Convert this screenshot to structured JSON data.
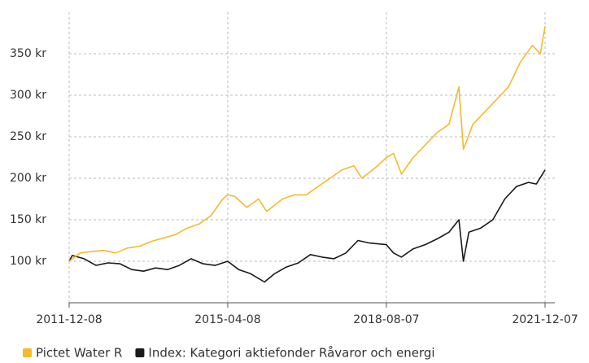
{
  "chart_data": {
    "type": "line",
    "xlim": [
      "2011-12-08",
      "2021-12-07"
    ],
    "xticks": [
      "2011-12-08",
      "2015-04-08",
      "2018-08-07",
      "2021-12-07"
    ],
    "ylim": [
      50,
      400
    ],
    "yticks": [
      {
        "value": 100,
        "label": "100 kr"
      },
      {
        "value": 150,
        "label": "150 kr"
      },
      {
        "value": 200,
        "label": "200 kr"
      },
      {
        "value": 250,
        "label": "250 kr"
      },
      {
        "value": 300,
        "label": "300 kr"
      },
      {
        "value": 350,
        "label": "350 kr"
      }
    ],
    "grid": true,
    "legend": "bottom",
    "series": [
      {
        "name": "Pictet Water R",
        "color": "#f6b92b",
        "x": [
          "2011-12-08",
          "2012-03-01",
          "2012-06-01",
          "2012-09-01",
          "2012-12-01",
          "2013-03-01",
          "2013-06-01",
          "2013-09-01",
          "2013-12-01",
          "2014-03-01",
          "2014-06-01",
          "2014-09-01",
          "2014-12-01",
          "2015-03-01",
          "2015-04-08",
          "2015-06-01",
          "2015-09-01",
          "2015-12-01",
          "2016-02-01",
          "2016-06-01",
          "2016-09-01",
          "2016-12-01",
          "2017-03-01",
          "2017-06-01",
          "2017-09-01",
          "2017-12-01",
          "2018-02-01",
          "2018-06-01",
          "2018-08-07",
          "2018-10-01",
          "2018-12-01",
          "2019-03-01",
          "2019-06-01",
          "2019-09-01",
          "2019-12-01",
          "2020-02-15",
          "2020-03-20",
          "2020-06-01",
          "2020-09-01",
          "2020-12-01",
          "2021-03-01",
          "2021-06-01",
          "2021-09-01",
          "2021-11-01",
          "2021-12-07"
        ],
        "values": [
          100,
          110,
          112,
          113,
          110,
          116,
          118,
          124,
          128,
          132,
          140,
          145,
          155,
          175,
          180,
          178,
          165,
          175,
          160,
          175,
          180,
          180,
          190,
          200,
          210,
          215,
          200,
          215,
          225,
          230,
          205,
          225,
          240,
          255,
          265,
          310,
          235,
          265,
          280,
          295,
          310,
          340,
          360,
          350,
          383
        ]
      },
      {
        "name": "Index: Kategori aktiefonder Råvaror och energi",
        "color": "#1a1a1a",
        "x": [
          "2011-12-08",
          "2012-01-01",
          "2012-04-01",
          "2012-07-01",
          "2012-10-01",
          "2013-01-01",
          "2013-04-01",
          "2013-07-01",
          "2013-10-01",
          "2014-01-01",
          "2014-04-01",
          "2014-07-01",
          "2014-10-01",
          "2015-01-01",
          "2015-04-08",
          "2015-07-01",
          "2015-10-01",
          "2016-01-15",
          "2016-04-01",
          "2016-07-01",
          "2016-10-01",
          "2017-01-01",
          "2017-04-01",
          "2017-07-01",
          "2017-10-01",
          "2018-01-01",
          "2018-04-01",
          "2018-08-07",
          "2018-10-01",
          "2018-12-01",
          "2019-03-01",
          "2019-06-01",
          "2019-09-01",
          "2019-12-01",
          "2020-02-15",
          "2020-03-20",
          "2020-05-01",
          "2020-08-01",
          "2020-11-01",
          "2021-02-01",
          "2021-05-01",
          "2021-08-01",
          "2021-10-01",
          "2021-12-07"
        ],
        "values": [
          100,
          107,
          103,
          95,
          98,
          97,
          90,
          88,
          92,
          90,
          95,
          103,
          97,
          95,
          100,
          90,
          85,
          75,
          85,
          93,
          98,
          108,
          105,
          103,
          110,
          125,
          122,
          120,
          110,
          105,
          115,
          120,
          127,
          135,
          150,
          100,
          135,
          140,
          150,
          175,
          190,
          195,
          193,
          210
        ]
      }
    ]
  }
}
